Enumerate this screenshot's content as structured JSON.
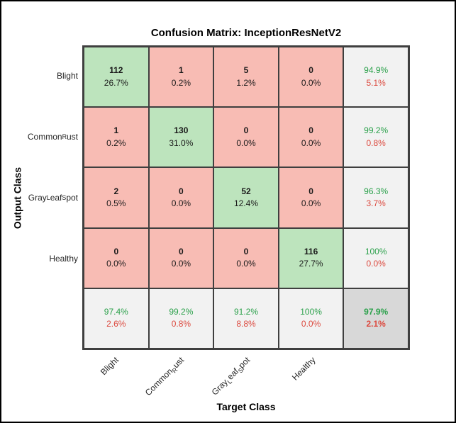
{
  "chart_data": {
    "type": "heatmap",
    "subtype": "confusion-matrix",
    "title": "Confusion Matrix: InceptionResNetV2",
    "xlabel": "Target Class",
    "ylabel": "Output Class",
    "classes": [
      "Blight",
      "Common_Rust",
      "Gray_Leaf_Spot",
      "Healthy"
    ],
    "class_segments": [
      [
        {
          "text": "Blight",
          "sub": false
        }
      ],
      [
        {
          "text": "Common",
          "sub": false
        },
        {
          "text": "R",
          "sub": true
        },
        {
          "text": "ust",
          "sub": false
        }
      ],
      [
        {
          "text": "Gray",
          "sub": false
        },
        {
          "text": "L",
          "sub": true
        },
        {
          "text": "eaf",
          "sub": false
        },
        {
          "text": "S",
          "sub": true
        },
        {
          "text": "pot",
          "sub": false
        }
      ],
      [
        {
          "text": "Healthy",
          "sub": false
        }
      ]
    ],
    "cells": [
      [
        {
          "count": "112",
          "pct": "26.7%"
        },
        {
          "count": "1",
          "pct": "0.2%"
        },
        {
          "count": "5",
          "pct": "1.2%"
        },
        {
          "count": "0",
          "pct": "0.0%"
        }
      ],
      [
        {
          "count": "1",
          "pct": "0.2%"
        },
        {
          "count": "130",
          "pct": "31.0%"
        },
        {
          "count": "0",
          "pct": "0.0%"
        },
        {
          "count": "0",
          "pct": "0.0%"
        }
      ],
      [
        {
          "count": "2",
          "pct": "0.5%"
        },
        {
          "count": "0",
          "pct": "0.0%"
        },
        {
          "count": "52",
          "pct": "12.4%"
        },
        {
          "count": "0",
          "pct": "0.0%"
        }
      ],
      [
        {
          "count": "0",
          "pct": "0.0%"
        },
        {
          "count": "0",
          "pct": "0.0%"
        },
        {
          "count": "0",
          "pct": "0.0%"
        },
        {
          "count": "116",
          "pct": "27.7%"
        }
      ]
    ],
    "row_summary": [
      {
        "good": "94.9%",
        "bad": "5.1%"
      },
      {
        "good": "99.2%",
        "bad": "0.8%"
      },
      {
        "good": "96.3%",
        "bad": "3.7%"
      },
      {
        "good": "100%",
        "bad": "0.0%"
      }
    ],
    "col_summary": [
      {
        "good": "97.4%",
        "bad": "2.6%"
      },
      {
        "good": "99.2%",
        "bad": "0.8%"
      },
      {
        "good": "91.2%",
        "bad": "8.8%"
      },
      {
        "good": "100%",
        "bad": "0.0%"
      }
    ],
    "overall": {
      "good": "97.9%",
      "bad": "2.1%"
    }
  },
  "colors": {
    "diagonal_bg": "#bde4bd",
    "off_diagonal_bg": "#f8bcb4",
    "summary_bg": "#f2f2f2",
    "total_bg": "#d8d8d8",
    "good_text": "#2ba14b",
    "bad_text": "#dc4a3f",
    "grid_line": "#3f3f3f",
    "cell_text": "#1a1a1a"
  }
}
